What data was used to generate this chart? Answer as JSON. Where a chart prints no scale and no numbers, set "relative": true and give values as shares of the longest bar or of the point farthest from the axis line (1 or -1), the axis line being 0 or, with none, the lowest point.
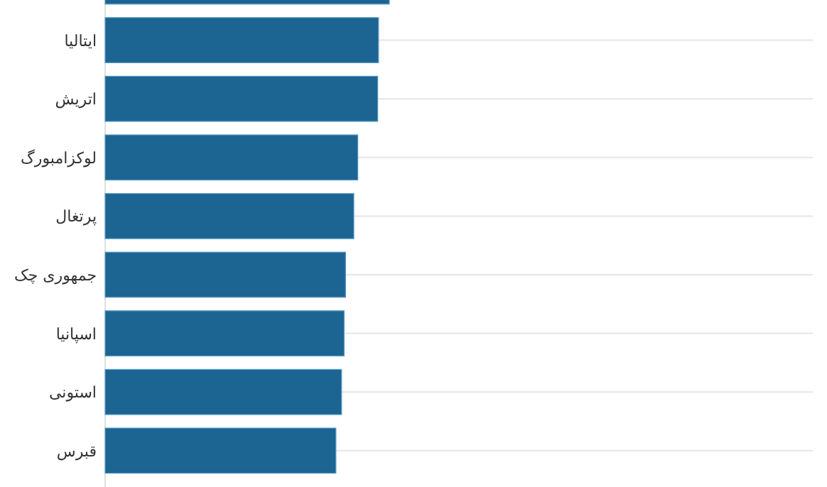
{
  "chart_data": {
    "type": "bar",
    "orientation": "horizontal",
    "relative": true,
    "grid": "y",
    "categories": [
      null,
      "ایتالیا",
      "اتریش",
      "لوکزامبورگ",
      "پرتغال",
      "جمهوری چک",
      "اسپانیا",
      "استونی",
      "قبرس"
    ],
    "values": [
      1,
      0.962,
      0.959,
      0.889,
      0.875,
      0.846,
      0.841,
      0.832,
      0.812
    ],
    "color": "#1c6492"
  }
}
